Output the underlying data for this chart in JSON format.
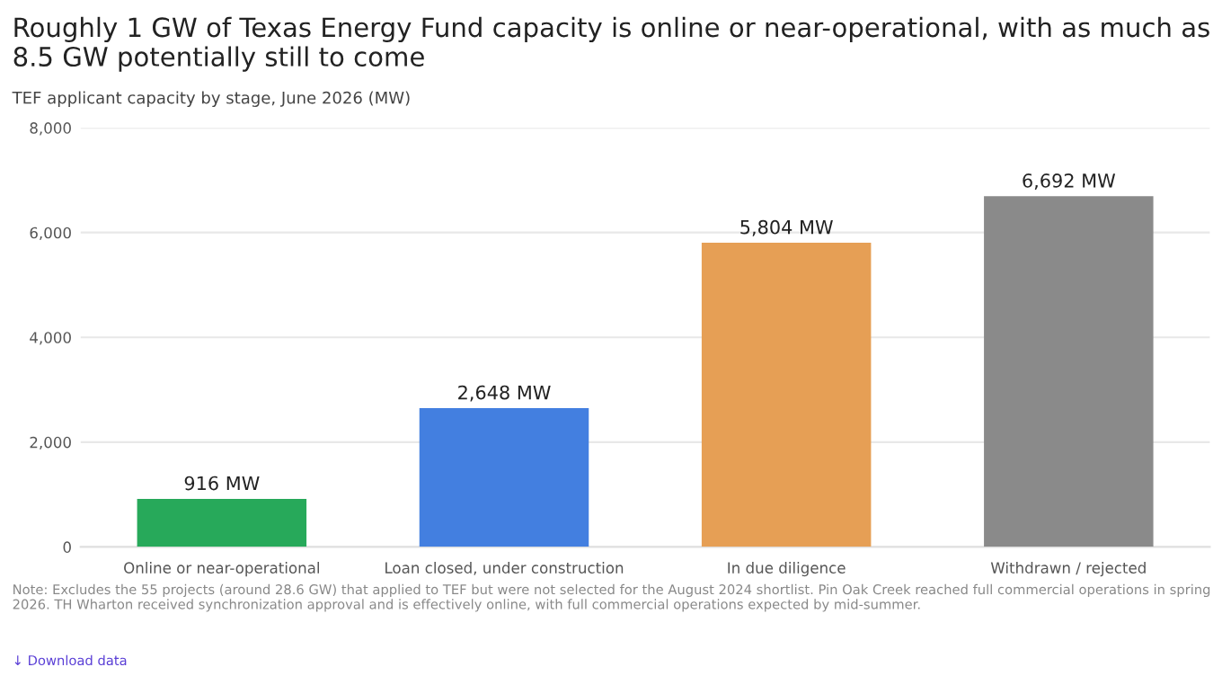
{
  "chart_data": {
    "type": "bar",
    "title": "Roughly 1 GW of Texas Energy Fund capacity is online or near-operational, with as much as 8.5 GW potentially still to come",
    "subtitle": "TEF applicant capacity by stage, June 2026 (MW)",
    "categories": [
      "Online or near-operational",
      "Loan closed, under construction",
      "In due diligence",
      "Withdrawn / rejected"
    ],
    "values": [
      916,
      2648,
      5804,
      6692
    ],
    "colors": [
      "#27a95a",
      "#437fe0",
      "#e69f55",
      "#8a8a8a"
    ],
    "value_labels": [
      "916 MW",
      "2,648 MW",
      "5,804 MW",
      "6,692 MW"
    ],
    "ylim": [
      0,
      8000
    ],
    "yticks": [
      {
        "value": 0,
        "label": "0"
      },
      {
        "value": 2000,
        "label": "2,000"
      },
      {
        "value": 4000,
        "label": "4,000"
      },
      {
        "value": 6000,
        "label": "6,000"
      },
      {
        "value": 8000,
        "label": "8,000"
      }
    ],
    "grid": "y",
    "annotations": [
      "Note: Excludes the 55 projects (around 28.6 GW) that applied to TEF but were not selected for the August 2024 shortlist. Pin Oak Creek reached full commercial operations in spring 2026. TH Wharton received synchronization approval and is effectively online, with full commercial operations expected by mid-summer.",
      "↓ Download data"
    ]
  }
}
